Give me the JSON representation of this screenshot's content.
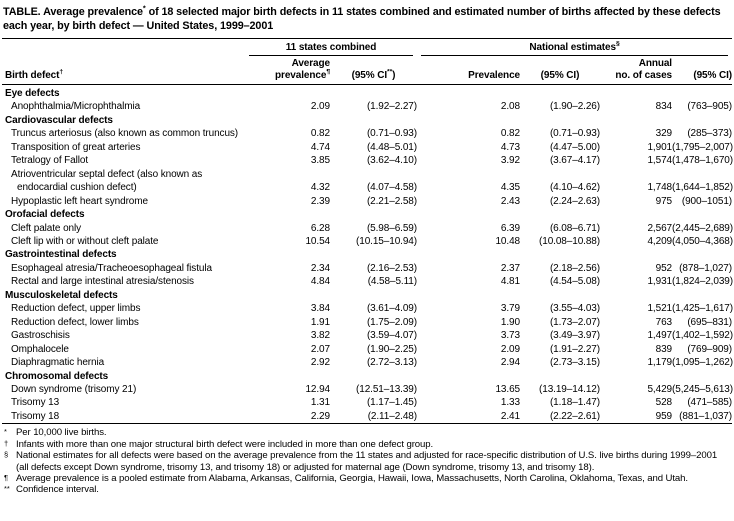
{
  "title": {
    "pre": "TABLE. Average prevalence",
    "sup": "*",
    "post": " of 18 selected major birth defects in 11 states combined and estimated number of births affected by these defects each year, by birth defect — United States, 1999–2001"
  },
  "table": {
    "group_headers": [
      {
        "text": "11 states combined",
        "sup": ""
      },
      {
        "text": "National estimates",
        "sup": "§"
      }
    ],
    "columns": {
      "col1": {
        "text": "Birth defect",
        "sup": "†"
      },
      "col2_line1": "Average",
      "col2": {
        "text": "prevalence",
        "sup": "¶"
      },
      "col3": {
        "pre": "(95% CI",
        "sup": "**",
        "post": ")"
      },
      "col4": "Prevalence",
      "col5": "(95% CI)",
      "col6_line1": "Annual",
      "col6_line2": "no. of cases",
      "col7": "(95% CI)"
    },
    "sections": [
      {
        "name": "Eye defects",
        "rows": [
          {
            "label": "Anophthalmia/Microphthalmia",
            "label2": "",
            "values": [
              "2.09",
              "(1.92–2.27)",
              "2.08",
              "(1.90–2.26)",
              "834",
              "(763–905)"
            ]
          }
        ]
      },
      {
        "name": "Cardiovascular defects",
        "rows": [
          {
            "label": "Truncus arteriosus (also known as common truncus)",
            "label2": "",
            "values": [
              "0.82",
              "(0.71–0.93)",
              "0.82",
              "(0.71–0.93)",
              "329",
              "(285–373)"
            ]
          },
          {
            "label": "Transposition of great arteries",
            "label2": "",
            "values": [
              "4.74",
              "(4.48–5.01)",
              "4.73",
              "(4.47–5.00)",
              "1,901",
              "(1,795–2,007)"
            ]
          },
          {
            "label": "Tetralogy of Fallot",
            "label2": "",
            "values": [
              "3.85",
              "(3.62–4.10)",
              "3.92",
              "(3.67–4.17)",
              "1,574",
              "(1,478–1,670)"
            ]
          },
          {
            "label": "Atrioventricular septal defect (also known as",
            "label2": "endocardial cushion defect)",
            "values": [
              "4.32",
              "(4.07–4.58)",
              "4.35",
              "(4.10–4.62)",
              "1,748",
              "(1,644–1,852)"
            ]
          },
          {
            "label": "Hypoplastic left heart syndrome",
            "label2": "",
            "values": [
              "2.39",
              "(2.21–2.58)",
              "2.43",
              "(2.24–2.63)",
              "975",
              "(900–1051)"
            ]
          }
        ]
      },
      {
        "name": "Orofacial defects",
        "rows": [
          {
            "label": "Cleft palate only",
            "label2": "",
            "values": [
              "6.28",
              "(5.98–6.59)",
              "6.39",
              "(6.08–6.71)",
              "2,567",
              "(2,445–2,689)"
            ]
          },
          {
            "label": "Cleft lip with or without cleft palate",
            "label2": "",
            "values": [
              "10.54",
              "(10.15–10.94)",
              "10.48",
              "(10.08–10.88)",
              "4,209",
              "(4,050–4,368)"
            ]
          }
        ]
      },
      {
        "name": "Gastrointestinal defects",
        "rows": [
          {
            "label": "Esophageal atresia/Tracheoesophageal fistula",
            "label2": "",
            "values": [
              "2.34",
              "(2.16–2.53)",
              "2.37",
              "(2.18–2.56)",
              "952",
              "(878–1,027)"
            ]
          },
          {
            "label": "Rectal and large intestinal atresia/stenosis",
            "label2": "",
            "values": [
              "4.84",
              "(4.58–5.11)",
              "4.81",
              "(4.54–5.08)",
              "1,931",
              "(1,824–2,039)"
            ]
          }
        ]
      },
      {
        "name": "Musculoskeletal defects",
        "rows": [
          {
            "label": "Reduction defect, upper limbs",
            "label2": "",
            "values": [
              "3.84",
              "(3.61–4.09)",
              "3.79",
              "(3.55–4.03)",
              "1,521",
              "(1,425–1,617)"
            ]
          },
          {
            "label": "Reduction defect, lower limbs",
            "label2": "",
            "values": [
              "1.91",
              "(1.75–2.09)",
              "1.90",
              "(1.73–2.07)",
              "763",
              "(695–831)"
            ]
          },
          {
            "label": "Gastroschisis",
            "label2": "",
            "values": [
              "3.82",
              "(3.59–4.07)",
              "3.73",
              "(3.49–3.97)",
              "1,497",
              "(1,402–1,592)"
            ]
          },
          {
            "label": "Omphalocele",
            "label2": "",
            "values": [
              "2.07",
              "(1.90–2.25)",
              "2.09",
              "(1.91–2.27)",
              "839",
              "(769–909)"
            ]
          },
          {
            "label": "Diaphragmatic hernia",
            "label2": "",
            "values": [
              "2.92",
              "(2.72–3.13)",
              "2.94",
              "(2.73–3.15)",
              "1,179",
              "(1,095–1,262)"
            ]
          }
        ]
      },
      {
        "name": "Chromosomal defects",
        "rows": [
          {
            "label": "Down syndrome (trisomy 21)",
            "label2": "",
            "values": [
              "12.94",
              "(12.51–13.39)",
              "13.65",
              "(13.19–14.12)",
              "5,429",
              "(5,245–5,613)"
            ]
          },
          {
            "label": "Trisomy 13",
            "label2": "",
            "values": [
              "1.31",
              "(1.17–1.45)",
              "1.33",
              "(1.18–1.47)",
              "528",
              "(471–585)"
            ]
          },
          {
            "label": "Trisomy 18",
            "label2": "",
            "values": [
              "2.29",
              "(2.11–2.48)",
              "2.41",
              "(2.22–2.61)",
              "959",
              "(881–1,037)"
            ]
          }
        ]
      }
    ]
  },
  "footnotes": [
    {
      "marker": "*",
      "text": "Per 10,000 live births."
    },
    {
      "marker": "†",
      "text": "Infants with more than one major structural birth defect were included in more than one defect group."
    },
    {
      "marker": "§",
      "text": "National estimates for all defects were based on the average prevalence from the 11 states and adjusted for race-specific distribution of U.S. live births during 1999–2001 (all defects except Down syndrome, trisomy 13, and trisomy 18) or adjusted for maternal age (Down syndrome, trisomy 13, and trisomy 18)."
    },
    {
      "marker": "¶",
      "text": "Average prevalence is a pooled estimate from Alabama, Arkansas, California, Georgia, Hawaii, Iowa, Massachusetts, North Carolina, Oklahoma, Texas, and Utah."
    },
    {
      "marker": "**",
      "text": "Confidence interval."
    }
  ]
}
